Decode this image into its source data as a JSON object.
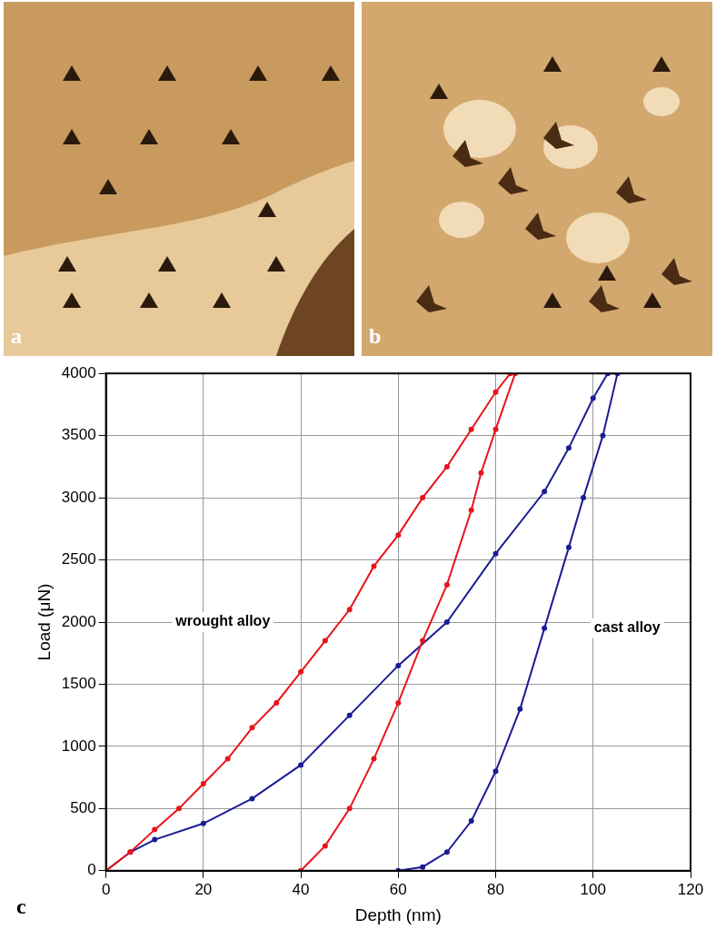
{
  "panels": [
    {
      "label": "a"
    },
    {
      "label": "b"
    }
  ],
  "chart_data": {
    "type": "scatter",
    "label": "c",
    "x_label": "Depth (nm)",
    "y_label": "Load (μN)",
    "xlim": [
      0,
      120
    ],
    "xticks": [
      0,
      20,
      40,
      60,
      80,
      100,
      120
    ],
    "ylim": [
      0,
      4000
    ],
    "yticks": [
      0,
      500,
      1000,
      1500,
      2000,
      2500,
      3000,
      3500,
      4000
    ],
    "grid": true,
    "series": [
      {
        "color": "#e8141c",
        "marker": "dot",
        "line_style": "solid",
        "x": [
          0,
          5,
          10,
          15,
          20,
          25,
          30,
          35,
          40,
          45,
          50,
          55,
          60,
          65,
          70,
          75,
          80,
          83,
          84,
          80,
          77,
          75,
          70,
          65,
          60,
          55,
          50,
          45,
          40
        ],
        "values": [
          0,
          150,
          330,
          500,
          700,
          900,
          1150,
          1350,
          1600,
          1850,
          2100,
          2450,
          2700,
          3000,
          3250,
          3550,
          3850,
          4000,
          4000,
          3550,
          3200,
          2900,
          2300,
          1850,
          1350,
          900,
          500,
          200,
          0
        ]
      },
      {
        "color": "#1c1c96",
        "marker": "dot",
        "line_style": "solid",
        "x": [
          0,
          5,
          10,
          20,
          30,
          40,
          50,
          60,
          70,
          80,
          90,
          95,
          100,
          103,
          105,
          102,
          98,
          95,
          90,
          85,
          80,
          75,
          70,
          65,
          60
        ],
        "values": [
          0,
          150,
          250,
          380,
          580,
          850,
          1250,
          1650,
          2000,
          2550,
          3050,
          3400,
          3800,
          4000,
          4000,
          3500,
          3000,
          2600,
          1950,
          1300,
          800,
          400,
          150,
          30,
          0
        ]
      }
    ],
    "annotations": [
      {
        "text": "wrought alloy",
        "x": 24,
        "y": 2000
      },
      {
        "text": "cast alloy",
        "x": 107,
        "y": 1950
      }
    ]
  }
}
